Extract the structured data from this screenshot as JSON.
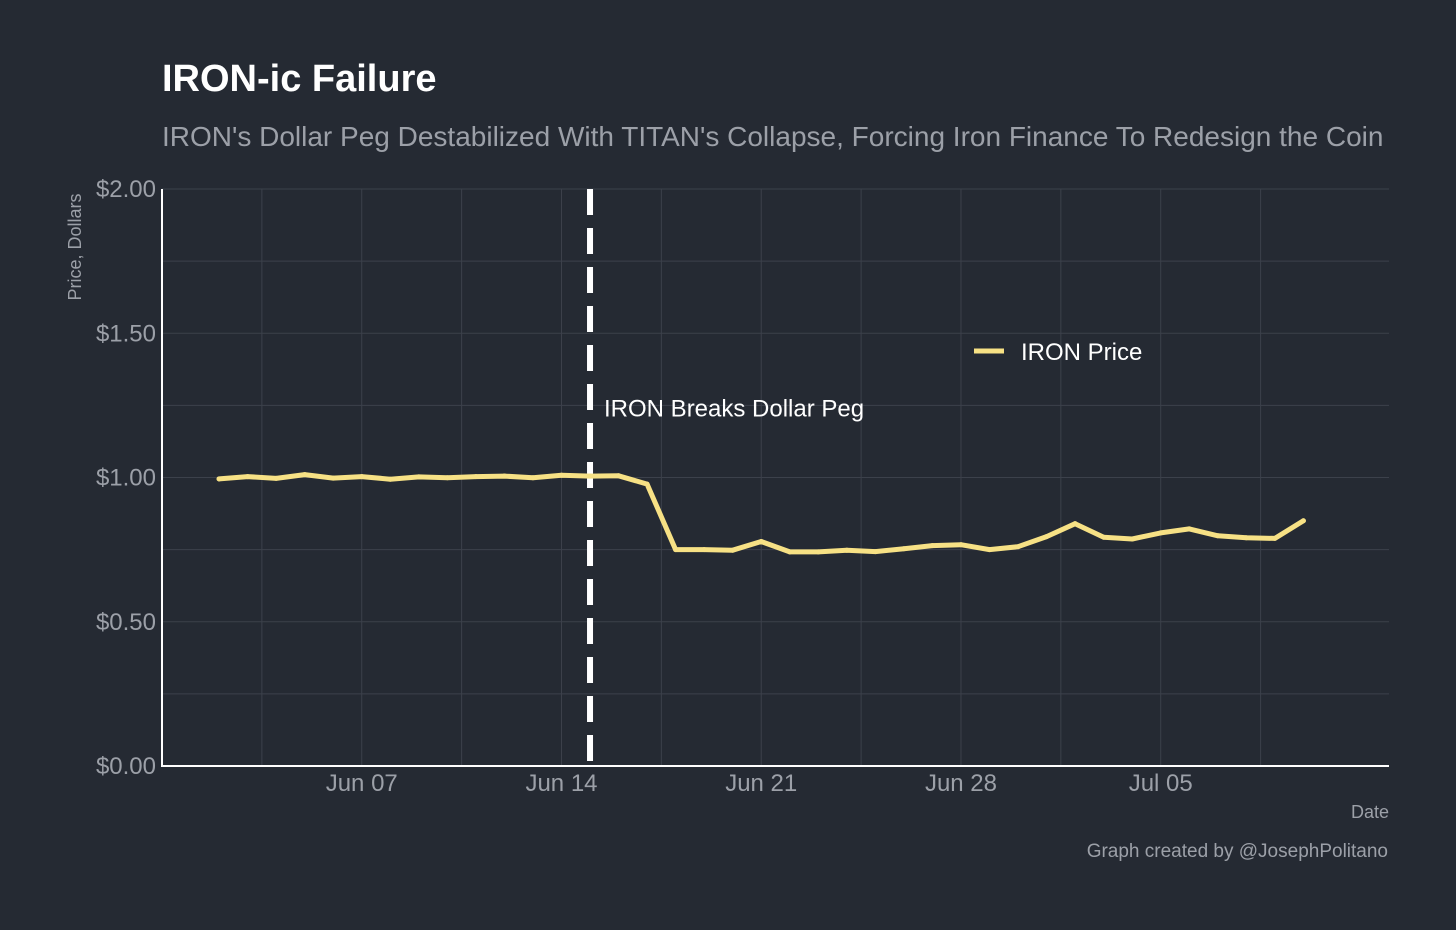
{
  "colors": {
    "background": "#252a33",
    "line": "#f7e185",
    "grid": "#3c414b",
    "axis": "#ffffff",
    "muted_text": "#9ca0a8",
    "marker_line": "#ffffff"
  },
  "header": {
    "title": "IRON-ic Failure",
    "subtitle": "IRON's Dollar Peg Destabilized With TITAN's Collapse, Forcing Iron Finance To Redesign the Coin"
  },
  "footer": {
    "caption": "Graph created by @JosephPolitano"
  },
  "chart_data": {
    "type": "line",
    "title": "IRON-ic Failure",
    "subtitle": "IRON's Dollar Peg Destabilized With TITAN's Collapse, Forcing Iron Finance To Redesign the Coin",
    "xlabel": "Date",
    "ylabel": "Price, Dollars",
    "ylim": [
      0,
      2
    ],
    "y_ticks": [
      0,
      0.5,
      1.0,
      1.5,
      2.0
    ],
    "y_tick_labels": [
      "$0.00",
      "$0.50",
      "$1.00",
      "$1.50",
      "$2.00"
    ],
    "x_range": [
      "2021-05-31",
      "2021-07-13"
    ],
    "x_ticks": [
      "2021-06-07",
      "2021-06-14",
      "2021-06-21",
      "2021-06-28",
      "2021-07-05"
    ],
    "x_tick_labels": [
      "Jun 07",
      "Jun 14",
      "Jun 21",
      "Jun 28",
      "Jul 05"
    ],
    "grid": true,
    "legend": {
      "position": "top-right",
      "entries": [
        "IRON Price"
      ]
    },
    "annotations": [
      {
        "type": "vline",
        "x": "2021-06-15",
        "style": "dashed",
        "label": "IRON Breaks Dollar Peg",
        "label_y": 1.24
      }
    ],
    "series": [
      {
        "name": "IRON Price",
        "x": [
          "2021-06-02",
          "2021-06-03",
          "2021-06-04",
          "2021-06-05",
          "2021-06-06",
          "2021-06-07",
          "2021-06-08",
          "2021-06-09",
          "2021-06-10",
          "2021-06-11",
          "2021-06-12",
          "2021-06-13",
          "2021-06-14",
          "2021-06-15",
          "2021-06-16",
          "2021-06-17",
          "2021-06-18",
          "2021-06-19",
          "2021-06-20",
          "2021-06-21",
          "2021-06-22",
          "2021-06-23",
          "2021-06-24",
          "2021-06-25",
          "2021-06-26",
          "2021-06-27",
          "2021-06-28",
          "2021-06-29",
          "2021-06-30",
          "2021-07-01",
          "2021-07-02",
          "2021-07-03",
          "2021-07-04",
          "2021-07-05",
          "2021-07-06",
          "2021-07-07",
          "2021-07-08",
          "2021-07-09",
          "2021-07-10"
        ],
        "values": [
          0.995,
          1.003,
          0.997,
          1.01,
          0.998,
          1.003,
          0.994,
          1.002,
          0.999,
          1.003,
          1.005,
          0.999,
          1.008,
          1.005,
          1.006,
          0.977,
          0.75,
          0.75,
          0.748,
          0.778,
          0.742,
          0.742,
          0.748,
          0.743,
          0.753,
          0.764,
          0.767,
          0.75,
          0.76,
          0.795,
          0.84,
          0.793,
          0.787,
          0.808,
          0.822,
          0.798,
          0.791,
          0.789,
          0.85
        ]
      }
    ]
  }
}
